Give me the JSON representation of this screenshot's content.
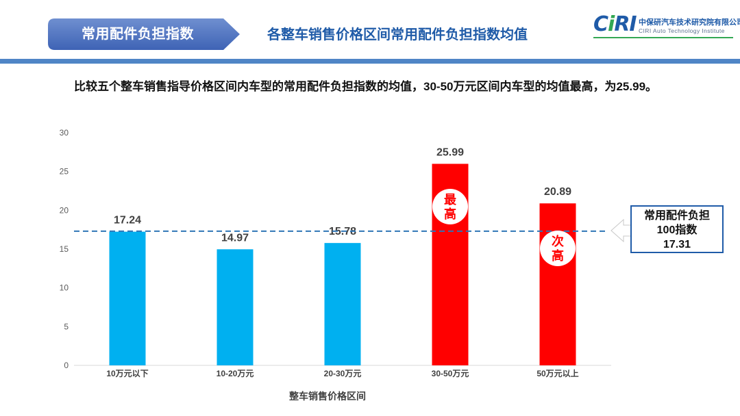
{
  "header": {
    "tab_label": "常用配件负担指数",
    "title": "各整车销售价格区间常用配件负担指数均值"
  },
  "logo": {
    "mark_left": "C",
    "mark_mid": "i",
    "mark_right": "RI",
    "cn": "中保研汽车技术研究院有限公司",
    "en": "CIRI Auto Technology Institute"
  },
  "summary": "比较五个整车销售指导价格区间内车型的常用配件负担指数的均值，30-50万元区间内车型的均值最高，为25.99。",
  "colors": {
    "brand_blue": "#1f5ba8",
    "bar_blue": "#00b0f0",
    "bar_red": "#ff0000",
    "ref_line": "#2e75b6"
  },
  "chart_data": {
    "type": "bar",
    "categories": [
      "10万元以下",
      "10-20万元",
      "20-30万元",
      "30-50万元",
      "50万元以上"
    ],
    "values": [
      17.24,
      14.97,
      15.78,
      25.99,
      20.89
    ],
    "value_labels": [
      "17.24",
      "14.97",
      "15.78",
      "25.99",
      "20.89"
    ],
    "bar_colors": [
      "#00b0f0",
      "#00b0f0",
      "#00b0f0",
      "#ff0000",
      "#ff0000"
    ],
    "xlabel": "整车销售价格区间",
    "ylabel": "",
    "ylim": [
      0,
      30
    ],
    "yticks": [
      0,
      5,
      10,
      15,
      20,
      25,
      30
    ],
    "grid": false,
    "reference_line": {
      "value": 17.31,
      "style": "dashed"
    },
    "badges": [
      {
        "category_index": 3,
        "lines": [
          "最",
          "高"
        ]
      },
      {
        "category_index": 4,
        "lines": [
          "次",
          "高"
        ]
      }
    ]
  },
  "callout": {
    "line1": "常用配件负担",
    "line2": "100指数",
    "line3": "17.31"
  }
}
